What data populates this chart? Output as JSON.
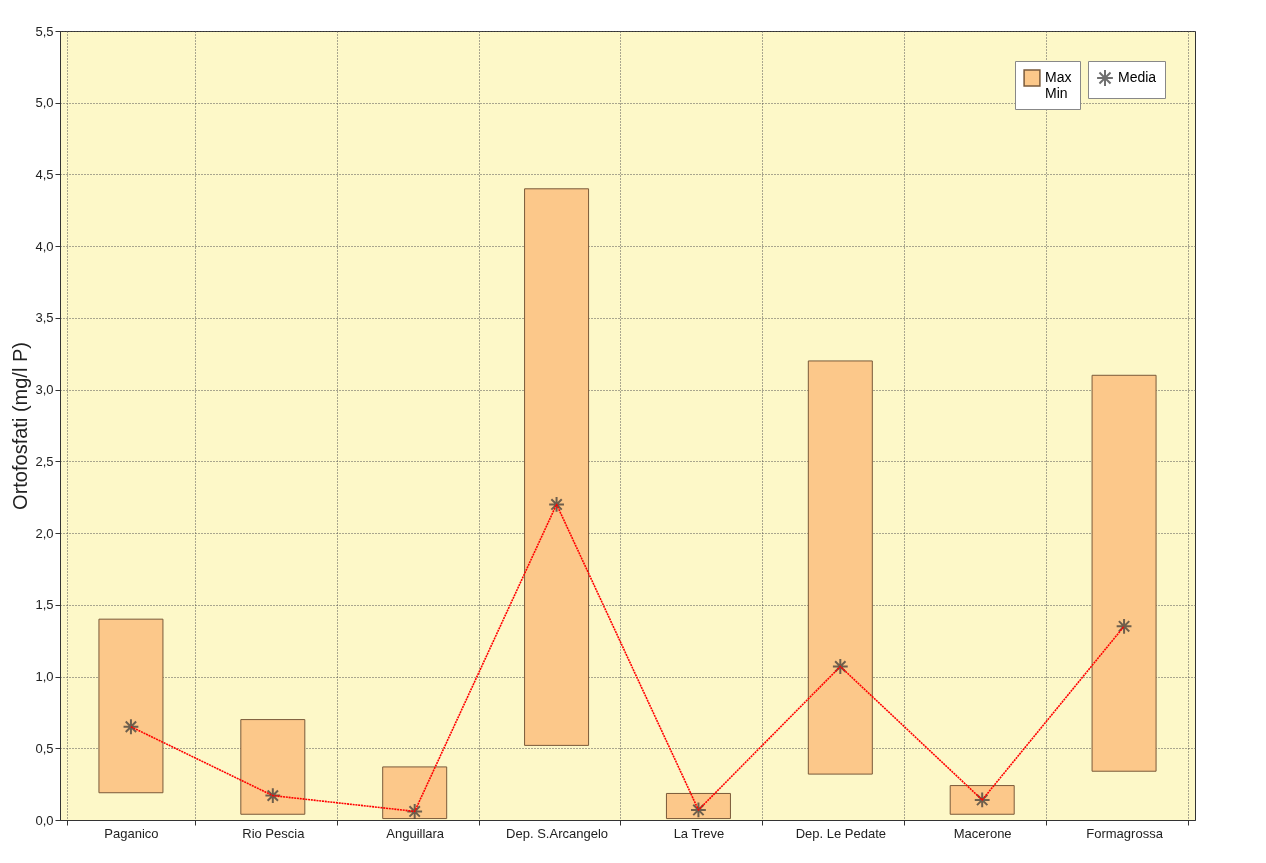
{
  "chart_data": {
    "type": "bar",
    "ylabel": "Ortofosfati (mg/l P)",
    "categories": [
      "Paganico",
      "Rio Pescia",
      "Anguillara",
      "Dep. S.Arcangelo",
      "La Treve",
      "Dep. Le Pedate",
      "Macerone",
      "Formagrossa"
    ],
    "series": [
      {
        "name": "Max\nMin",
        "color": "#fcc88a",
        "base": [
          0.19,
          0.04,
          0.01,
          0.52,
          0.01,
          0.32,
          0.04,
          0.34
        ],
        "values": [
          1.21,
          0.66,
          0.36,
          3.88,
          0.175,
          2.88,
          0.2,
          2.76
        ]
      },
      {
        "name": "Media",
        "type": "line",
        "color": "#ff0000",
        "marker": "cross",
        "line_style": "dotted",
        "values": [
          0.65,
          0.17,
          0.06,
          2.2,
          0.07,
          1.07,
          0.14,
          1.35
        ]
      }
    ],
    "ylim": [
      0,
      5.5
    ],
    "yticks": [
      {
        "value": 0,
        "label": "0,0"
      },
      {
        "value": 0.5,
        "label": "0,5"
      },
      {
        "value": 1,
        "label": "1,0"
      },
      {
        "value": 1.5,
        "label": "1,5"
      },
      {
        "value": 2,
        "label": "2,0"
      },
      {
        "value": 2.5,
        "label": "2,5"
      },
      {
        "value": 3,
        "label": "3,0"
      },
      {
        "value": 3.5,
        "label": "3,5"
      },
      {
        "value": 4,
        "label": "4,0"
      },
      {
        "value": 4.5,
        "label": "4,5"
      },
      {
        "value": 5,
        "label": "5,0"
      },
      {
        "value": 5.5,
        "label": "5,5"
      }
    ],
    "grid": true,
    "legend": "top right"
  }
}
